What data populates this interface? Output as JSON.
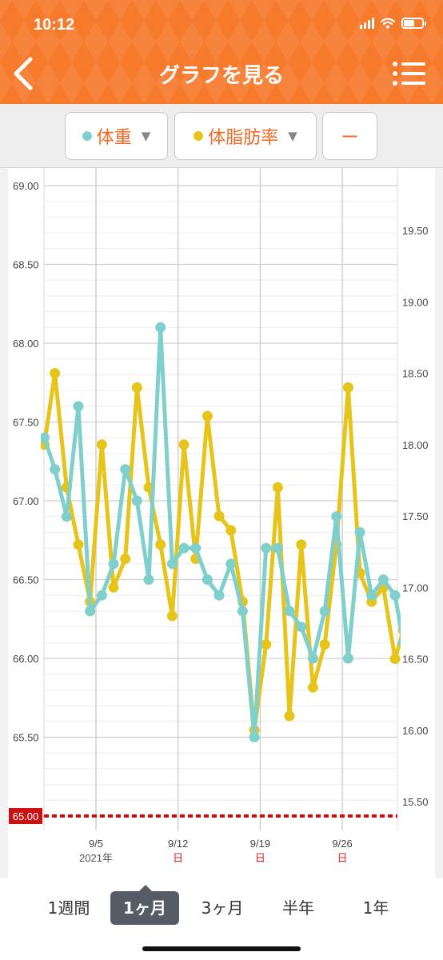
{
  "status": {
    "time": "10:12"
  },
  "header": {
    "title": "グラフを見る"
  },
  "selectors": [
    {
      "label": "体重",
      "dot_color": "#7fd0cc"
    },
    {
      "label": "体脂肪率",
      "dot_color": "#e6c419"
    },
    {
      "label": "ー"
    }
  ],
  "tabs": [
    "1週間",
    "1ヶ月",
    "3ヶ月",
    "半年",
    "1年"
  ],
  "active_tab": "1ヶ月",
  "chart_data": {
    "type": "line",
    "y_left": {
      "ticks": [
        "69.00",
        "68.50",
        "68.00",
        "67.50",
        "67.00",
        "66.50",
        "66.00",
        "65.50"
      ],
      "ylim": [
        64.9,
        69.0
      ]
    },
    "y_right": {
      "ticks": [
        "19.50",
        "19.00",
        "18.50",
        "18.00",
        "17.50",
        "17.00",
        "16.50",
        "16.00",
        "15.50"
      ],
      "ylim": [
        15.3,
        19.8
      ]
    },
    "x_labels": [
      {
        "date": "9/5",
        "sub": "2021年",
        "sub_color": "#555555",
        "day": 5
      },
      {
        "date": "9/12",
        "sub": "日",
        "sub_color": "#e02020",
        "day": 12
      },
      {
        "date": "9/19",
        "sub": "日",
        "sub_color": "#e02020",
        "day": 19
      },
      {
        "date": "9/26",
        "sub": "日",
        "sub_color": "#e02020",
        "day": 26
      }
    ],
    "target_line": {
      "label": "65.00",
      "value": 65.0,
      "color": "#cc1111"
    },
    "series": [
      {
        "name": "体重",
        "axis": "left",
        "color": "#7fd0cc",
        "points": [
          [
            0.6,
            67.4
          ],
          [
            1.5,
            67.2
          ],
          [
            2.5,
            66.9
          ],
          [
            3.5,
            67.6
          ],
          [
            4.5,
            66.3
          ],
          [
            5.5,
            66.4
          ],
          [
            6.5,
            66.6
          ],
          [
            7.5,
            67.2
          ],
          [
            8.5,
            67.0
          ],
          [
            9.5,
            66.5
          ],
          [
            10.5,
            68.1
          ],
          [
            11.5,
            66.6
          ],
          [
            12.5,
            66.7
          ],
          [
            13.5,
            66.7
          ],
          [
            14.5,
            66.5
          ],
          [
            15.5,
            66.4
          ],
          [
            16.5,
            66.6
          ],
          [
            17.5,
            66.3
          ],
          [
            18.5,
            65.5
          ],
          [
            19.5,
            66.7
          ],
          [
            20.5,
            66.7
          ],
          [
            21.5,
            66.3
          ],
          [
            22.5,
            66.2
          ],
          [
            23.5,
            66.0
          ],
          [
            24.5,
            66.3
          ],
          [
            25.5,
            66.9
          ],
          [
            26.5,
            66.0
          ],
          [
            27.5,
            66.8
          ],
          [
            28.5,
            66.4
          ],
          [
            29.5,
            66.5
          ],
          [
            30.5,
            66.4
          ],
          [
            31.2,
            66.1
          ]
        ]
      },
      {
        "name": "体脂肪率",
        "axis": "right",
        "color": "#e6c419",
        "points": [
          [
            0.6,
            18.0
          ],
          [
            1.5,
            18.5
          ],
          [
            2.5,
            17.7
          ],
          [
            3.5,
            17.3
          ],
          [
            4.5,
            16.9
          ],
          [
            5.5,
            18.0
          ],
          [
            6.5,
            17.0
          ],
          [
            7.5,
            17.2
          ],
          [
            8.5,
            18.4
          ],
          [
            9.5,
            17.7
          ],
          [
            10.5,
            17.3
          ],
          [
            11.5,
            16.8
          ],
          [
            12.5,
            18.0
          ],
          [
            13.5,
            17.2
          ],
          [
            14.5,
            18.2
          ],
          [
            15.5,
            17.5
          ],
          [
            16.5,
            17.4
          ],
          [
            17.5,
            16.9
          ],
          [
            18.5,
            16.0
          ],
          [
            19.5,
            16.6
          ],
          [
            20.5,
            17.7
          ],
          [
            21.5,
            16.1
          ],
          [
            22.5,
            17.3
          ],
          [
            23.5,
            16.3
          ],
          [
            24.5,
            16.6
          ],
          [
            25.5,
            17.3
          ],
          [
            26.5,
            18.4
          ],
          [
            27.5,
            17.1
          ],
          [
            28.5,
            16.9
          ],
          [
            29.5,
            17.0
          ],
          [
            30.5,
            16.5
          ],
          [
            31.2,
            16.7
          ]
        ]
      }
    ]
  }
}
